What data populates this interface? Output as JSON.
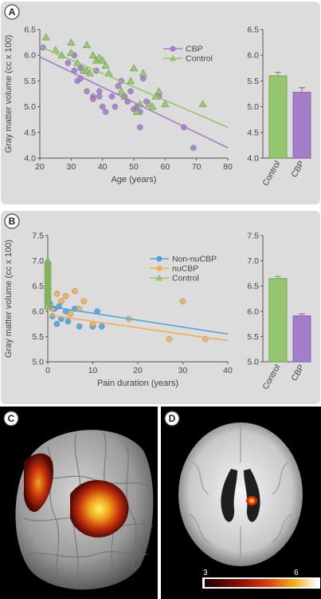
{
  "panels": {
    "a": {
      "letter": "A"
    },
    "b": {
      "letter": "B"
    },
    "c": {
      "letter": "C"
    },
    "d": {
      "letter": "D"
    }
  },
  "colorbar": {
    "min_label": "3",
    "max_label": "6"
  },
  "colors": {
    "cbp": "#a47ec9",
    "control": "#96c66e",
    "nonnucbp": "#4aa8d8",
    "nucbp": "#f0b055",
    "panel_fill": "#dcdcdc"
  },
  "chart_data": [
    {
      "id": "A-scatter",
      "type": "scatter",
      "xlabel": "Age (years)",
      "ylabel": "Gray matter volume (cc x 100)",
      "xlim": [
        20,
        80
      ],
      "ylim": [
        4.0,
        6.5
      ],
      "xticks": [
        "20",
        "30",
        "40",
        "50",
        "60",
        "70",
        "80"
      ],
      "yticks": [
        "4.0",
        "4.5",
        "5.0",
        "5.5",
        "6.0",
        "6.5"
      ],
      "legend": "top-right",
      "series": [
        {
          "name": "CBP",
          "marker": "circle",
          "points": [
            [
              21,
              6.15
            ],
            [
              29,
              5.85
            ],
            [
              31,
              6.0
            ],
            [
              31,
              5.7
            ],
            [
              32,
              5.5
            ],
            [
              33,
              5.55
            ],
            [
              33,
              5.75
            ],
            [
              35,
              5.3
            ],
            [
              37,
              5.2
            ],
            [
              37,
              5.15
            ],
            [
              38,
              5.7
            ],
            [
              39,
              5.3
            ],
            [
              39,
              5.2
            ],
            [
              40,
              5.0
            ],
            [
              41,
              4.9
            ],
            [
              43,
              5.2
            ],
            [
              44,
              5.0
            ],
            [
              45,
              5.4
            ],
            [
              46,
              5.5
            ],
            [
              47,
              5.2
            ],
            [
              48,
              5.1
            ],
            [
              49,
              5.3
            ],
            [
              50,
              4.95
            ],
            [
              51,
              5.0
            ],
            [
              52,
              4.6
            ],
            [
              52,
              4.9
            ],
            [
              53,
              5.55
            ],
            [
              54,
              5.1
            ],
            [
              58,
              5.2
            ],
            [
              66,
              4.6
            ],
            [
              69,
              4.2
            ]
          ],
          "fit": [
            [
              20,
              5.97
            ],
            [
              80,
              4.2
            ]
          ]
        },
        {
          "name": "Control",
          "marker": "triangle",
          "points": [
            [
              22,
              6.35
            ],
            [
              25,
              6.1
            ],
            [
              27,
              6.0
            ],
            [
              30,
              6.25
            ],
            [
              30,
              6.05
            ],
            [
              32,
              5.85
            ],
            [
              34,
              5.7
            ],
            [
              35,
              5.7
            ],
            [
              35,
              6.2
            ],
            [
              36,
              5.65
            ],
            [
              37,
              6.0
            ],
            [
              38,
              5.9
            ],
            [
              39,
              5.95
            ],
            [
              40,
              5.9
            ],
            [
              41,
              5.8
            ],
            [
              42,
              5.65
            ],
            [
              46,
              5.3
            ],
            [
              47,
              5.2
            ],
            [
              49,
              5.5
            ],
            [
              50,
              5.75
            ],
            [
              51,
              4.9
            ],
            [
              52,
              5.05
            ],
            [
              53,
              5.65
            ],
            [
              55,
              5.05
            ],
            [
              56,
              5.0
            ],
            [
              57,
              5.2
            ],
            [
              58,
              5.3
            ],
            [
              60,
              5.05
            ],
            [
              72,
              5.05
            ]
          ],
          "fit": [
            [
              20,
              6.17
            ],
            [
              80,
              4.6
            ]
          ]
        }
      ]
    },
    {
      "id": "A-bar",
      "type": "bar",
      "categories": [
        "Control",
        "CBP"
      ],
      "values": [
        5.6,
        5.28
      ],
      "errors": [
        0.07,
        0.09
      ],
      "ylim": [
        4.0,
        6.5
      ],
      "yticks": [
        "4.0",
        "4.5",
        "5.0",
        "5.5",
        "6.0",
        "6.5"
      ]
    },
    {
      "id": "B-scatter",
      "type": "scatter",
      "xlabel": "Pain duration (years)",
      "ylabel": "Gray matter volume (cc x 100)",
      "xlim": [
        0,
        40
      ],
      "ylim": [
        5.0,
        7.5
      ],
      "xticks": [
        "0",
        "10",
        "20",
        "30",
        "40"
      ],
      "yticks": [
        "5.0",
        "5.5",
        "6.0",
        "6.5",
        "7.0",
        "7.5"
      ],
      "legend": "top-right",
      "series": [
        {
          "name": "Non-nuCBP",
          "marker": "circle",
          "points": [
            [
              0,
              6.3
            ],
            [
              0.5,
              6.15
            ],
            [
              1,
              5.9
            ],
            [
              1.5,
              6.05
            ],
            [
              2,
              5.75
            ],
            [
              2.5,
              6.1
            ],
            [
              3,
              5.85
            ],
            [
              4,
              6.0
            ],
            [
              4.5,
              5.8
            ],
            [
              6,
              6.05
            ],
            [
              7,
              5.7
            ],
            [
              10,
              5.7
            ],
            [
              11,
              6.0
            ],
            [
              12,
              5.7
            ]
          ],
          "fit": [
            [
              0,
              6.1
            ],
            [
              40,
              5.55
            ]
          ]
        },
        {
          "name": "nuCBP",
          "marker": "circle",
          "points": [
            [
              0,
              6.2
            ],
            [
              0.5,
              6.1
            ],
            [
              1,
              6.05
            ],
            [
              2,
              6.35
            ],
            [
              3,
              6.2
            ],
            [
              4,
              6.3
            ],
            [
              5,
              5.95
            ],
            [
              6,
              6.4
            ],
            [
              7,
              6.05
            ],
            [
              8,
              6.2
            ],
            [
              10,
              5.75
            ],
            [
              18,
              5.85
            ],
            [
              27,
              5.45
            ],
            [
              30,
              6.2
            ],
            [
              35,
              5.45
            ]
          ],
          "fit": [
            [
              0,
              5.93
            ],
            [
              40,
              5.42
            ]
          ]
        },
        {
          "name": "Control",
          "marker": "triangle",
          "points": [
            [
              0,
              7.0
            ],
            [
              0,
              6.95
            ],
            [
              0,
              6.9
            ],
            [
              0,
              6.85
            ],
            [
              0,
              6.8
            ],
            [
              0,
              6.75
            ],
            [
              0,
              6.7
            ],
            [
              0,
              6.65
            ],
            [
              0,
              6.6
            ],
            [
              0,
              6.55
            ],
            [
              0,
              6.5
            ],
            [
              0,
              6.45
            ],
            [
              0,
              6.4
            ],
            [
              0,
              6.35
            ],
            [
              0,
              6.3
            ],
            [
              0,
              6.25
            ],
            [
              0,
              6.2
            ],
            [
              0,
              6.15
            ],
            [
              0,
              6.1
            ]
          ]
        }
      ]
    },
    {
      "id": "B-bar",
      "type": "bar",
      "categories": [
        "Control",
        "CBP"
      ],
      "values": [
        6.65,
        5.91
      ],
      "errors": [
        0.04,
        0.04
      ],
      "ylim": [
        5.0,
        7.5
      ],
      "yticks": [
        "5.0",
        "5.5",
        "6.0",
        "6.5",
        "7.0",
        "7.5"
      ]
    }
  ]
}
